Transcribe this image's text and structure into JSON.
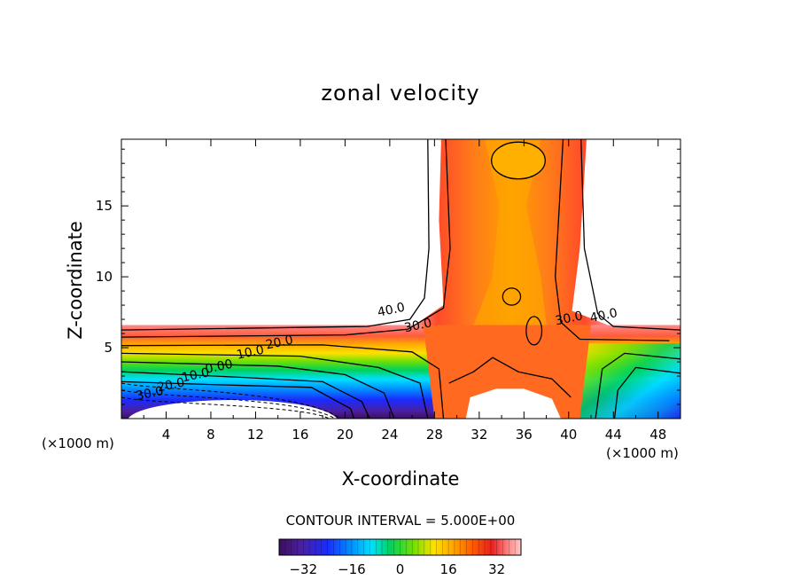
{
  "chart_data": {
    "type": "contour",
    "title": "zonal velocity",
    "xlabel": "X-coordinate",
    "ylabel": "Z-coordinate",
    "x_units": "(×1000 m)",
    "x_units_right": "(×1000 m)",
    "xlim": [
      0,
      50
    ],
    "ylim": [
      0,
      19.7
    ],
    "x_ticks": [
      4,
      8,
      12,
      16,
      20,
      24,
      28,
      32,
      36,
      40,
      44,
      48
    ],
    "y_ticks": [
      5,
      10,
      15
    ],
    "contour_interval_label": "CONTOUR INTERVAL = 5.000E+00",
    "contour_labels": [
      {
        "text": "40.0",
        "x": 24.2,
        "z": 7.4
      },
      {
        "text": "30.0",
        "x": 26.6,
        "z": 6.3
      },
      {
        "text": "20.0",
        "x": 14.2,
        "z": 5.1
      },
      {
        "text": "10.0",
        "x": 11.6,
        "z": 4.4
      },
      {
        "text": "0.00",
        "x": 8.8,
        "z": 3.4
      },
      {
        "text": "10.0",
        "x": 6.7,
        "z": 2.8
      },
      {
        "text": "20.0",
        "x": 4.5,
        "z": 2.1
      },
      {
        "text": "30.0",
        "x": 2.6,
        "z": 1.5
      },
      {
        "text": "30.0",
        "x": 40.1,
        "z": 6.8
      },
      {
        "text": "40.0",
        "x": 43.2,
        "z": 7.0
      }
    ],
    "colorbar": {
      "range": [
        -40,
        40
      ],
      "ticks": [
        -32,
        -16,
        0,
        16,
        32
      ],
      "tick_labels": [
        "−32",
        "−16",
        "0",
        "16",
        "32"
      ]
    },
    "grid": false,
    "legend": "none"
  }
}
